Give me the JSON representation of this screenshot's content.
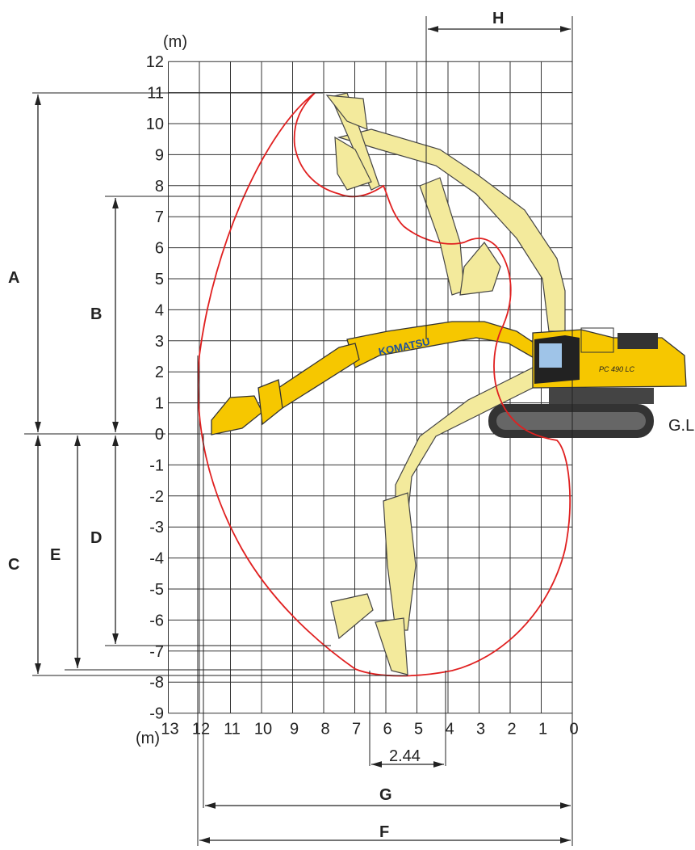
{
  "diagram": {
    "unit_top": "(m)",
    "unit_bottom": "(m)",
    "y_ticks": [
      12,
      11,
      10,
      9,
      8,
      7,
      6,
      5,
      4,
      3,
      2,
      1,
      0,
      -1,
      -2,
      -3,
      -4,
      -5,
      -6,
      -7,
      -8,
      -9
    ],
    "x_ticks": [
      13,
      12,
      11,
      10,
      9,
      8,
      7,
      6,
      5,
      4,
      3,
      2,
      1,
      0
    ],
    "dimensions": {
      "A": "A",
      "B": "B",
      "C": "C",
      "D": "D",
      "E": "E",
      "F": "F",
      "G": "G",
      "H": "H"
    },
    "ground_line": "G.L",
    "track_width": "2.44",
    "brand": "KOMATSU",
    "model": "PC 490 LC"
  }
}
